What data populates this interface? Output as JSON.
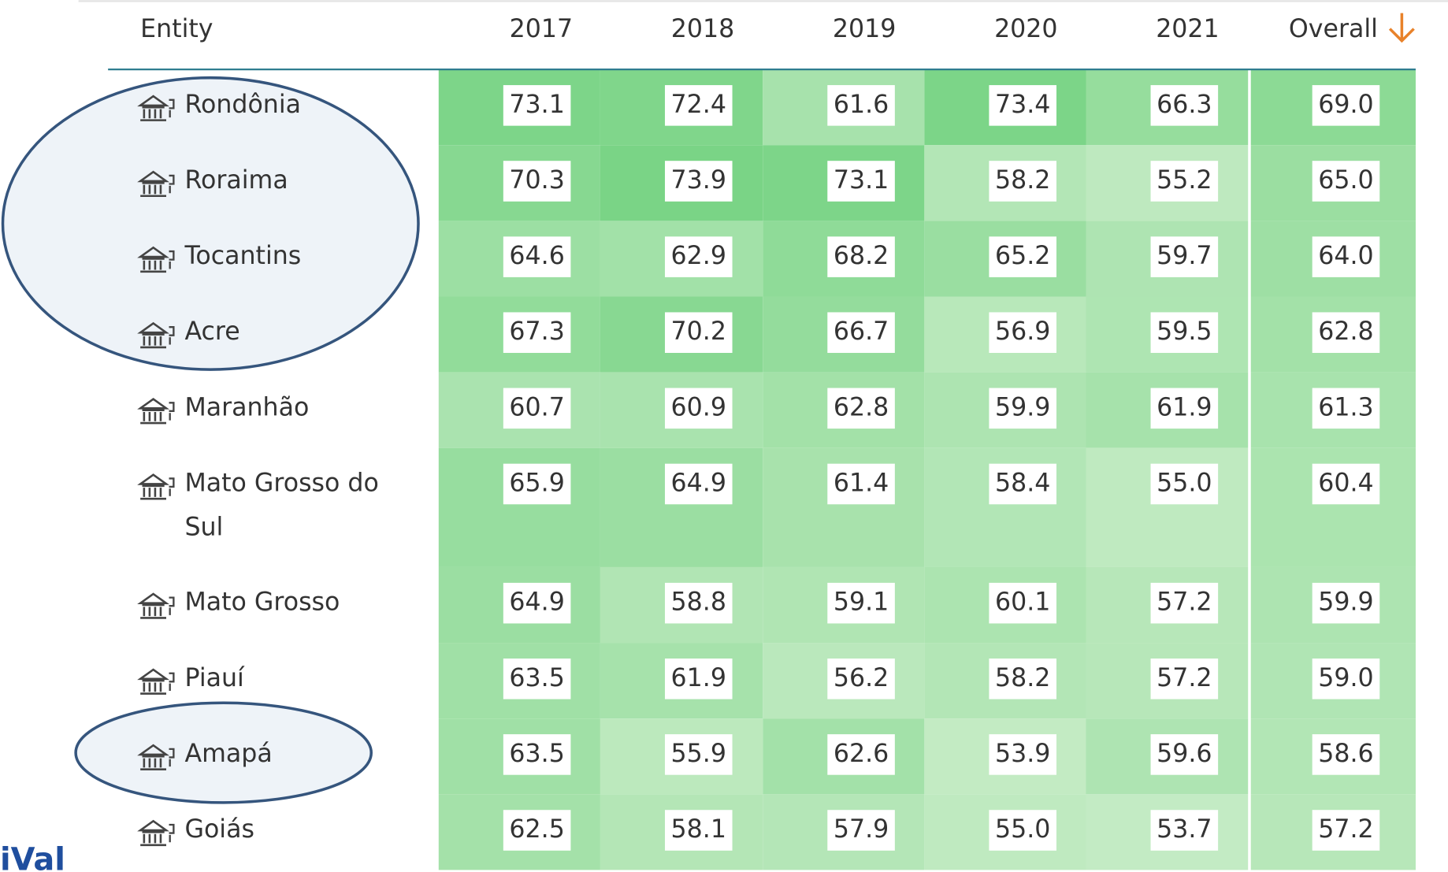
{
  "table": {
    "columns": [
      "Entity",
      "2017",
      "2018",
      "2019",
      "2020",
      "2021",
      "Overall"
    ],
    "rows": [
      [
        "Rondônia",
        "73.1",
        "72.4",
        "61.6",
        "73.4",
        "66.3",
        "69.0"
      ],
      [
        "Roraima",
        "70.3",
        "73.9",
        "73.1",
        "58.2",
        "55.2",
        "65.0"
      ],
      [
        "Tocantins",
        "64.6",
        "62.9",
        "68.2",
        "65.2",
        "59.7",
        "64.0"
      ],
      [
        "Acre",
        "67.3",
        "70.2",
        "66.7",
        "56.9",
        "59.5",
        "62.8"
      ],
      [
        "Maranhão",
        "60.7",
        "60.9",
        "62.8",
        "59.9",
        "61.9",
        "61.3"
      ],
      [
        "Mato Grosso do Sul",
        "65.9",
        "64.9",
        "61.4",
        "58.4",
        "55.0",
        "60.4"
      ],
      [
        "Mato Grosso",
        "64.9",
        "58.8",
        "59.1",
        "60.1",
        "57.2",
        "59.9"
      ],
      [
        "Piauí",
        "63.5",
        "61.9",
        "56.2",
        "58.2",
        "57.2",
        "59.0"
      ],
      [
        "Amapá",
        "63.5",
        "55.9",
        "62.6",
        "53.9",
        "59.6",
        "58.6"
      ],
      [
        "Goiás",
        "62.5",
        "58.1",
        "57.9",
        "55.0",
        "53.7",
        "57.2"
      ]
    ]
  },
  "footer": "iVal"
}
